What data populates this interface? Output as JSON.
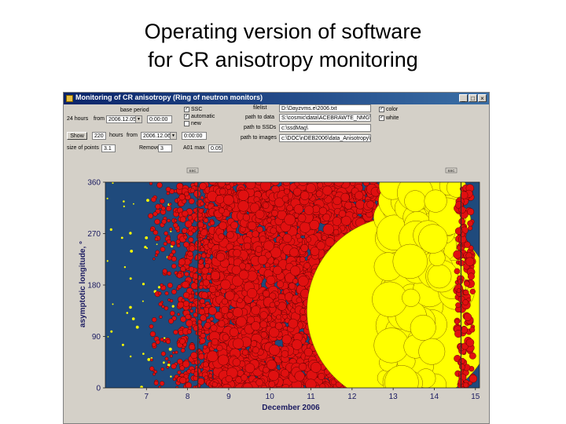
{
  "slide": {
    "title_line1": "Operating version of software",
    "title_line2": "for CR anisotropy monitoring"
  },
  "window": {
    "title": "Monitoring of CR anisotropy (Ring of neutron monitors)",
    "minimize_icon": "minimize-icon",
    "maximize_icon": "maximize-icon",
    "close_icon": "close-icon"
  },
  "controls": {
    "base_period_label": "base period",
    "hours_24_label": "24 hours",
    "from_label": "from",
    "from_date": "2006.12.05",
    "from_time": "0:00:00",
    "show_button": "Show",
    "hours_value": "220",
    "hours_label": "hours",
    "from_label2": "from",
    "from_date2": "2006.12.06",
    "from_time2": "0:00:00",
    "size_of_points_label": "size of points",
    "size_of_points_value": "3.1",
    "remove_label": "Remove",
    "remove_value": "3",
    "a01_max_label": "A01 max",
    "a01_max_value": "0.05",
    "chk_ssc": "SSC",
    "chk_automatic": "automatic",
    "chk_new": "new",
    "filelist_label": "filelist",
    "filelist_value": "D:\\Dayzvms.e\\2006.txt",
    "path_to_data_label": "path to data",
    "path_to_data_value": "S:\\cosmic\\data\\ACEBRAWTE_NMG\\",
    "path_to_ssds_label": "path to SSDs",
    "path_to_ssds_value": "c:\\ssdMag\\",
    "path_to_images_label": "path to images",
    "path_to_images_value": "c:\\DOC\\nDEB2006\\data_Anisotropy\\",
    "chk_color": "color",
    "chk_white": "white"
  },
  "markers": {
    "left": "SSC",
    "right": "SSC"
  },
  "chart_data": {
    "type": "scatter",
    "title": "",
    "xlabel": "December 2006",
    "ylabel": "asymptotic longitude, °",
    "x_ticks": [
      "7",
      "8",
      "9",
      "10",
      "11",
      "12",
      "13",
      "14",
      "15"
    ],
    "y_ticks": [
      "0",
      "90",
      "180",
      "270",
      "360"
    ],
    "xlim": [
      6.0,
      15.1
    ],
    "ylim": [
      0,
      360
    ],
    "background_color": "#1f4a7c",
    "colors": {
      "decrease": "#e01010",
      "increase": "#ffff00",
      "edge": "#400000"
    },
    "vertical_lines_x": [
      8.25,
      14.65
    ],
    "regions": [
      {
        "name": "red-blue-mixed",
        "x": [
          7.8,
          8.6
        ]
      },
      {
        "name": "red-dominant",
        "x": [
          8.6,
          13.35
        ]
      },
      {
        "name": "yellow-large-circle",
        "center_x": 13.2,
        "center_y": 135,
        "radius_y": 165
      },
      {
        "name": "yellow-band",
        "x": [
          13.35,
          14.55
        ]
      },
      {
        "name": "red-after-gap",
        "x": [
          14.55,
          14.95
        ]
      }
    ]
  }
}
